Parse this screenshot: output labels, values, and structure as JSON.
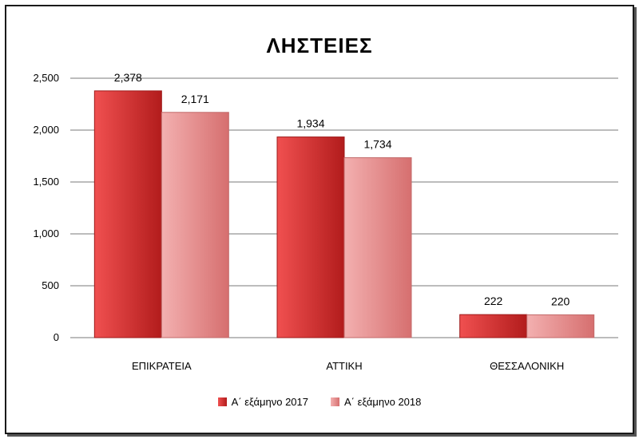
{
  "chart_data": {
    "type": "bar",
    "title": "ΛΗΣΤΕΙΕΣ",
    "categories": [
      "ΕΠΙΚΡΑΤΕΙΑ",
      "ΑΤΤΙΚΗ",
      "ΘΕΣΣΑΛΟΝΙΚΗ"
    ],
    "series": [
      {
        "name": "Α΄ εξάμηνο 2017",
        "values": [
          2378,
          1934,
          222
        ],
        "labels": [
          "2,378",
          "1,934",
          "222"
        ],
        "color": "#d63232"
      },
      {
        "name": "Α΄ εξάμηνο 2018",
        "values": [
          2171,
          1734,
          220
        ],
        "labels": [
          "2,171",
          "1,734",
          "220"
        ],
        "color": "#e88f8f"
      }
    ],
    "ylim": [
      0,
      2500
    ],
    "yticks": [
      0,
      500,
      1000,
      1500,
      2000,
      2500
    ],
    "ytick_labels": [
      "0",
      "500",
      "1,000",
      "1,500",
      "2,000",
      "2,500"
    ],
    "grid": true,
    "legend": "bottom"
  }
}
